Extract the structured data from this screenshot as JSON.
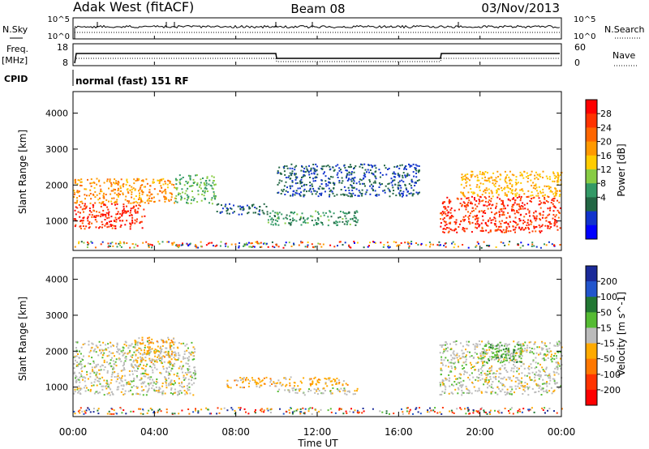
{
  "header": {
    "station": "Adak West (fitACF)",
    "beam": "Beam 08",
    "date": "03/Nov/2013"
  },
  "nsky_panel": {
    "left_label": "N.Sky",
    "right_label": "N.Search",
    "left_ticks": [
      "10^5",
      "10^0"
    ],
    "right_ticks": [
      "10^5",
      "10^0"
    ]
  },
  "freq_panel": {
    "left_label_line1": "Freq.",
    "left_label_line2": "[MHz]",
    "right_label": "Nave",
    "left_ticks": [
      "18",
      "8"
    ],
    "right_ticks": [
      "60",
      "0"
    ]
  },
  "cpid": {
    "label": "CPID",
    "text": "normal (fast) 151 RF"
  },
  "power_colorbar": {
    "title": "Power [dB]",
    "ticks": [
      "28",
      "24",
      "20",
      "16",
      "12",
      "8",
      "4"
    ],
    "colors": [
      "#ff0000",
      "#ff3300",
      "#ff6600",
      "#ff9900",
      "#ffcc00",
      "#88cc44",
      "#339966",
      "#226644",
      "#1133cc",
      "#0000ff"
    ]
  },
  "velocity_colorbar": {
    "title": "Velocity [m s^-1]",
    "ticks": [
      "200",
      "100",
      "50",
      "15",
      "-15",
      "-50",
      "-100",
      "-200"
    ],
    "colors": [
      "#1a2a99",
      "#2255cc",
      "#227733",
      "#55bb33",
      "#bbbbbb",
      "#ffaa00",
      "#ff7700",
      "#ff3300",
      "#ff0000"
    ]
  },
  "x_axis": {
    "label": "Time UT",
    "ticks": [
      "00:00",
      "04:00",
      "08:00",
      "12:00",
      "16:00",
      "20:00",
      "00:00"
    ]
  },
  "chart_data": [
    {
      "type": "heatmap",
      "title": "Power [dB]",
      "xlabel": "Time UT",
      "ylabel": "Slant Range [km]",
      "xlim": [
        0,
        24
      ],
      "ylim": [
        180,
        4600
      ],
      "yticks": [
        "1000",
        "2000",
        "3000",
        "4000"
      ],
      "zlim": [
        0,
        30
      ],
      "regions": [
        {
          "t": [
            0.0,
            3.5
          ],
          "r": [
            800,
            1500
          ],
          "power": 26
        },
        {
          "t": [
            0.0,
            5.0
          ],
          "r": [
            1500,
            2200
          ],
          "power": 20
        },
        {
          "t": [
            5.0,
            7.0
          ],
          "r": [
            1500,
            2300
          ],
          "power": 12
        },
        {
          "t": [
            7.0,
            9.5
          ],
          "r": [
            1200,
            1500
          ],
          "power": 6
        },
        {
          "t": [
            9.5,
            14.0
          ],
          "r": [
            900,
            1300
          ],
          "power": 10
        },
        {
          "t": [
            10.0,
            17.0
          ],
          "r": [
            1700,
            2600
          ],
          "power": 6
        },
        {
          "t": [
            18.0,
            24.0
          ],
          "r": [
            700,
            1700
          ],
          "power": 26
        },
        {
          "t": [
            19.0,
            24.0
          ],
          "r": [
            1700,
            2400
          ],
          "power": 18
        }
      ]
    },
    {
      "type": "heatmap",
      "title": "Velocity [m s^-1]",
      "xlabel": "Time UT",
      "ylabel": "Slant Range [km]",
      "xlim": [
        0,
        24
      ],
      "ylim": [
        180,
        4600
      ],
      "yticks": [
        "1000",
        "2000",
        "3000",
        "4000"
      ],
      "zlim": [
        -200,
        200
      ],
      "regions": [
        {
          "t": [
            0.0,
            6.0
          ],
          "r": [
            800,
            2300
          ],
          "velocity": 0
        },
        {
          "t": [
            3.0,
            5.0
          ],
          "r": [
            1700,
            2400
          ],
          "velocity": -40
        },
        {
          "t": [
            7.5,
            10.0
          ],
          "r": [
            1000,
            1300
          ],
          "velocity": -40
        },
        {
          "t": [
            10.0,
            13.5
          ],
          "r": [
            1050,
            1300
          ],
          "velocity": -40
        },
        {
          "t": [
            10.0,
            14.0
          ],
          "r": [
            800,
            1000
          ],
          "velocity": 0
        },
        {
          "t": [
            18.0,
            24.0
          ],
          "r": [
            800,
            2300
          ],
          "velocity": 0
        },
        {
          "t": [
            20.0,
            22.0
          ],
          "r": [
            1700,
            2200
          ],
          "velocity": 60
        }
      ]
    }
  ]
}
